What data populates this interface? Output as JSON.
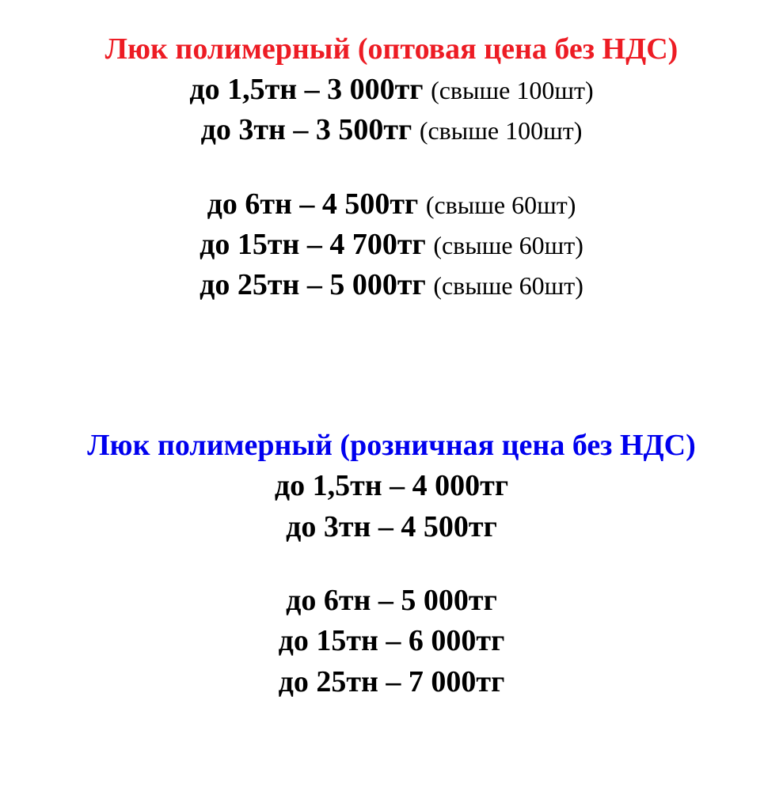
{
  "colors": {
    "title_red": "#ed1c24",
    "title_blue": "#0000ee",
    "text_black": "#000000",
    "background": "#ffffff"
  },
  "typography": {
    "title_fontsize": 38,
    "main_fontsize": 38,
    "note_fontsize": 32,
    "font_family": "Times New Roman"
  },
  "wholesale": {
    "title": "Люк полимерный  (оптовая цена без НДС)",
    "group1": [
      {
        "main": "до 1,5тн – 3 000тг ",
        "note": "(свыше 100шт)"
      },
      {
        "main": "до 3тн – 3 500тг ",
        "note": "(свыше 100шт)"
      }
    ],
    "group2": [
      {
        "main": "до 6тн – 4 500тг ",
        "note": "(свыше 60шт)"
      },
      {
        "main": "до 15тн – 4 700тг ",
        "note": "(свыше 60шт)"
      },
      {
        "main": "до 25тн – 5 000тг ",
        "note": "(свыше 60шт)"
      }
    ]
  },
  "retail": {
    "title": "Люк полимерный (розничная цена без НДС)",
    "group1": [
      {
        "main": "до 1,5тн – 4 000тг"
      },
      {
        "main": "до 3тн – 4 500тг"
      }
    ],
    "group2": [
      {
        "main": "до 6тн –  5 000тг"
      },
      {
        "main": "до 15тн – 6 000тг"
      },
      {
        "main": "до 25тн – 7 000тг"
      }
    ]
  }
}
